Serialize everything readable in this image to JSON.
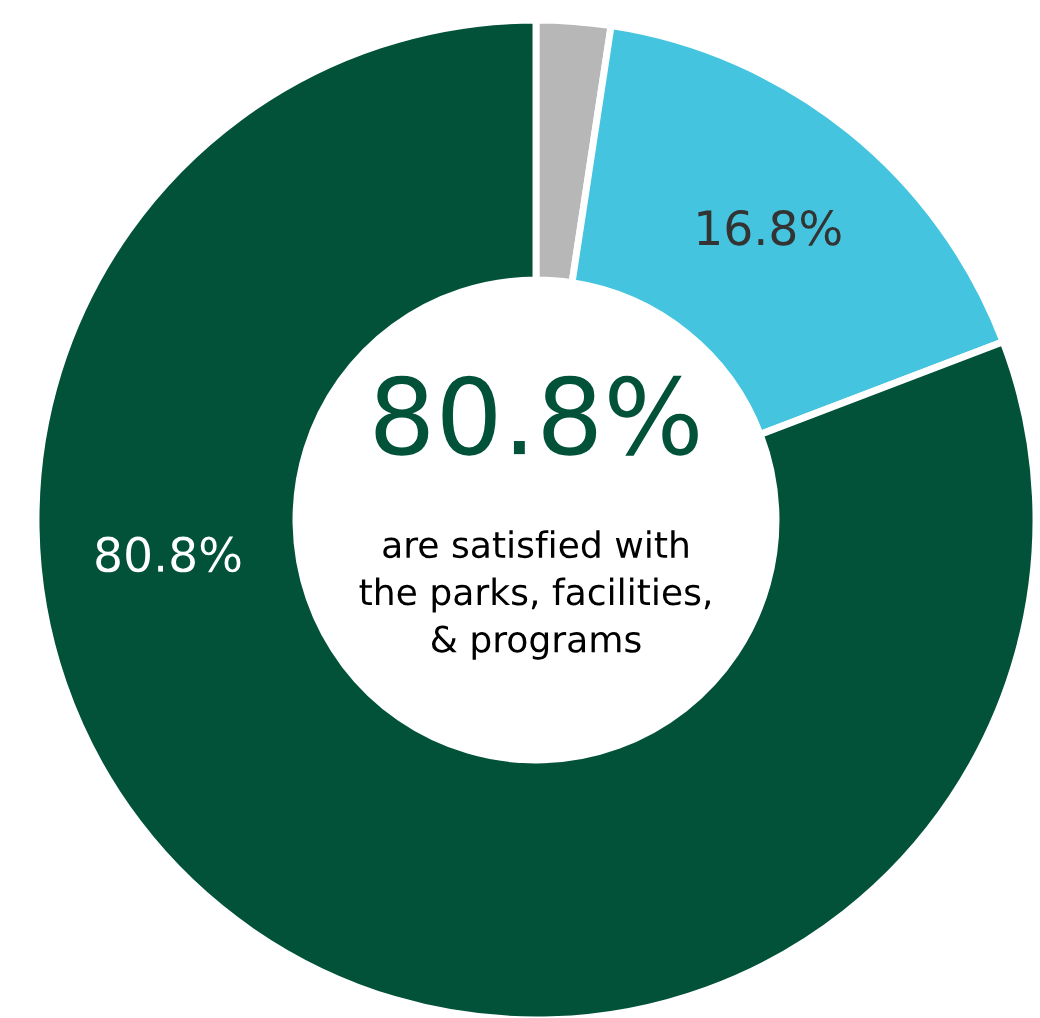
{
  "chart_data": {
    "type": "donut",
    "categories": [
      null,
      null,
      null
    ],
    "values": [
      2.4,
      16.8,
      80.8
    ],
    "colors": [
      "#b7b7b7",
      "#44c4de",
      "#02523a"
    ],
    "value_labels": [
      null,
      "16.8%",
      "80.8%"
    ],
    "annotations": [
      "80.8%",
      "are satisfied with\nthe parks, facilities,\n& programs"
    ],
    "legend": false
  }
}
